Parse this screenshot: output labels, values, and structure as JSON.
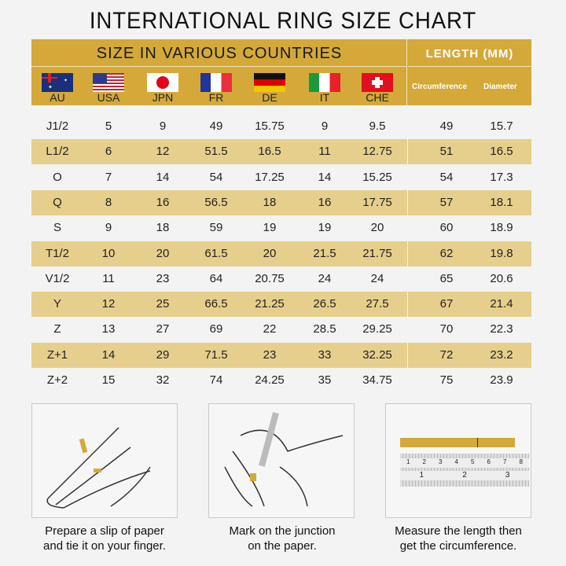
{
  "title": "INTERNATIONAL RING SIZE CHART",
  "header": {
    "countries_label": "SIZE IN VARIOUS COUNTRIES",
    "length_label": "LENGTH (MM)",
    "countries": [
      {
        "code": "AU",
        "flag": "australia-flag"
      },
      {
        "code": "USA",
        "flag": "usa-flag"
      },
      {
        "code": "JPN",
        "flag": "japan-flag"
      },
      {
        "code": "FR",
        "flag": "france-flag"
      },
      {
        "code": "DE",
        "flag": "germany-flag"
      },
      {
        "code": "IT",
        "flag": "italy-flag"
      },
      {
        "code": "CHE",
        "flag": "switzerland-flag"
      }
    ],
    "measures": [
      "Circumference",
      "Diameter"
    ]
  },
  "colors": {
    "gold": "#d4a93a",
    "row_highlight": "#e6cf8c"
  },
  "rows": [
    [
      "J1/2",
      "5",
      "9",
      "49",
      "15.75",
      "9",
      "9.5",
      "49",
      "15.7"
    ],
    [
      "L1/2",
      "6",
      "12",
      "51.5",
      "16.5",
      "11",
      "12.75",
      "51",
      "16.5"
    ],
    [
      "O",
      "7",
      "14",
      "54",
      "17.25",
      "14",
      "15.25",
      "54",
      "17.3"
    ],
    [
      "Q",
      "8",
      "16",
      "56.5",
      "18",
      "16",
      "17.75",
      "57",
      "18.1"
    ],
    [
      "S",
      "9",
      "18",
      "59",
      "19",
      "19",
      "20",
      "60",
      "18.9"
    ],
    [
      "T1/2",
      "10",
      "20",
      "61.5",
      "20",
      "21.5",
      "21.75",
      "62",
      "19.8"
    ],
    [
      "V1/2",
      "11",
      "23",
      "64",
      "20.75",
      "24",
      "24",
      "65",
      "20.6"
    ],
    [
      "Y",
      "12",
      "25",
      "66.5",
      "21.25",
      "26.5",
      "27.5",
      "67",
      "21.4"
    ],
    [
      "Z",
      "13",
      "27",
      "69",
      "22",
      "28.5",
      "29.25",
      "70",
      "22.3"
    ],
    [
      "Z+1",
      "14",
      "29",
      "71.5",
      "23",
      "33",
      "32.25",
      "72",
      "23.2"
    ],
    [
      "Z+2",
      "15",
      "32",
      "74",
      "24.25",
      "35",
      "34.75",
      "75",
      "23.9"
    ]
  ],
  "steps": [
    {
      "line1": "Prepare a slip of paper",
      "line2": "and tie it on your finger."
    },
    {
      "line1": "Mark on the junction",
      "line2": "on the paper."
    },
    {
      "line1": "Measure the length then",
      "line2": "get the circumference."
    }
  ],
  "ruler": {
    "top_ticks": [
      "1",
      "2",
      "3",
      "4",
      "5",
      "6",
      "7",
      "8"
    ],
    "bottom_ticks": [
      "1",
      "2",
      "3"
    ]
  }
}
